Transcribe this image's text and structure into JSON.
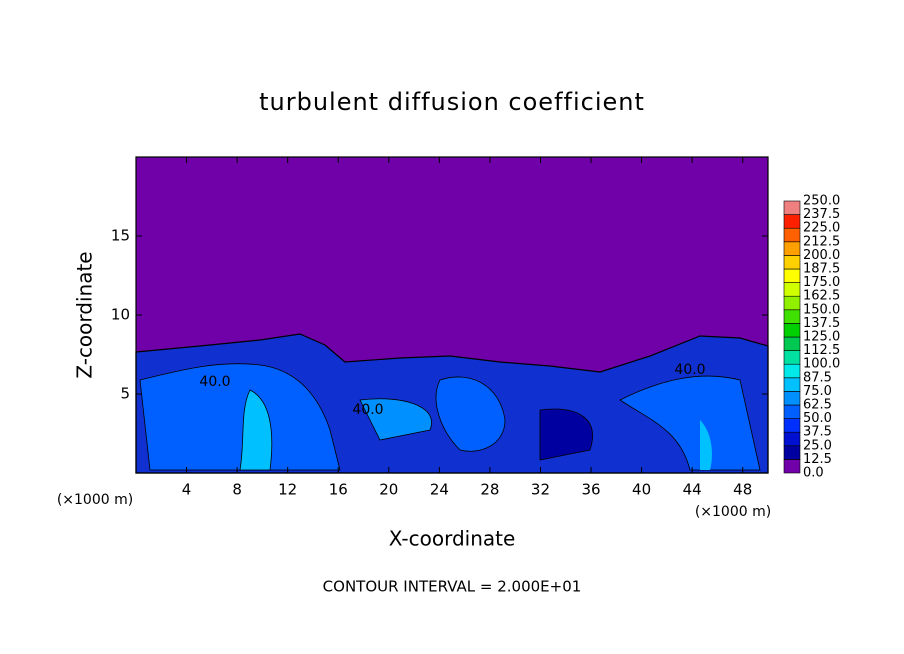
{
  "chart_data": {
    "type": "contour",
    "title": "turbulent diffusion coefficient",
    "xlabel": "X-coordinate",
    "ylabel": "Z-coordinate",
    "xunit": "(×1000 m)",
    "yunit": "(×1000 m)",
    "xlim": [
      0,
      50
    ],
    "ylim": [
      0,
      20
    ],
    "xticks": [
      4,
      8,
      12,
      16,
      20,
      24,
      28,
      32,
      36,
      40,
      44,
      48
    ],
    "yticks": [
      5,
      10,
      15
    ],
    "contour_labels": [
      "40.0",
      "40.0",
      "40.0"
    ],
    "footnote": "CONTOUR INTERVAL = 2.000E+01",
    "colorbar": {
      "levels": [
        {
          "value": 0,
          "label": "0.0"
        },
        {
          "value": 12.5,
          "label": "12.5"
        },
        {
          "value": 25,
          "label": "25.0"
        },
        {
          "value": 37.5,
          "label": "37.5"
        },
        {
          "value": 50,
          "label": "50.0"
        },
        {
          "value": 62.5,
          "label": "62.5"
        },
        {
          "value": 75,
          "label": "75.0"
        },
        {
          "value": 87.5,
          "label": "87.5"
        },
        {
          "value": 100,
          "label": "100.0"
        },
        {
          "value": 112.5,
          "label": "112.5"
        },
        {
          "value": 125,
          "label": "125.0"
        },
        {
          "value": 137.5,
          "label": "137.5"
        },
        {
          "value": 150,
          "label": "150.0"
        },
        {
          "value": 162.5,
          "label": "162.5"
        },
        {
          "value": 175,
          "label": "175.0"
        },
        {
          "value": 187.5,
          "label": "187.5"
        },
        {
          "value": 200,
          "label": "200.0"
        },
        {
          "value": 212.5,
          "label": "212.5"
        },
        {
          "value": 225,
          "label": "225.0"
        },
        {
          "value": 237.5,
          "label": "237.5"
        },
        {
          "value": 250,
          "label": "250.0"
        }
      ],
      "colors": [
        "#7000a8",
        "#0000a0",
        "#0010d0",
        "#0030ff",
        "#0060ff",
        "#0090ff",
        "#00c0ff",
        "#00e8e8",
        "#00e0a0",
        "#00c850",
        "#00d000",
        "#40e000",
        "#90f000",
        "#d0ff00",
        "#ffff00",
        "#ffd000",
        "#ffa000",
        "#ff6000",
        "#ff2000",
        "#f08080"
      ]
    }
  }
}
